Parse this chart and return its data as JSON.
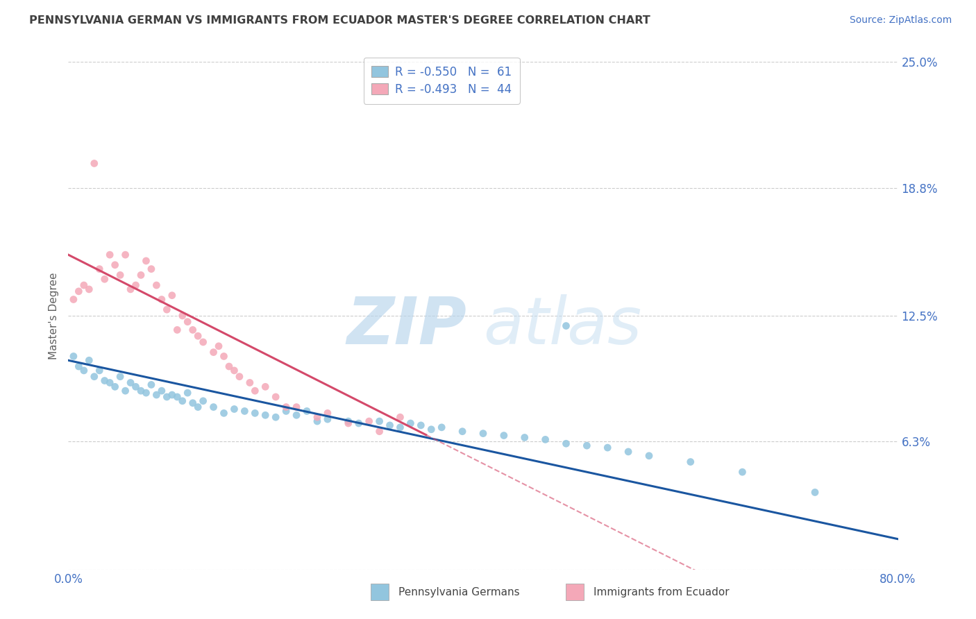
{
  "title": "PENNSYLVANIA GERMAN VS IMMIGRANTS FROM ECUADOR MASTER'S DEGREE CORRELATION CHART",
  "source_text": "Source: ZipAtlas.com",
  "ylabel": "Master's Degree",
  "xmin": 0.0,
  "xmax": 0.8,
  "ymin": 0.0,
  "ymax": 0.25,
  "ytick_vals": [
    0.0,
    0.063,
    0.125,
    0.188,
    0.25
  ],
  "ytick_labels": [
    "",
    "6.3%",
    "12.5%",
    "18.8%",
    "25.0%"
  ],
  "xtick_vals": [
    0.0,
    0.8
  ],
  "xtick_labels": [
    "0.0%",
    "80.0%"
  ],
  "r_blue": -0.55,
  "n_blue": 61,
  "r_pink": -0.493,
  "n_pink": 44,
  "blue_color": "#92c5de",
  "pink_color": "#f4a8b8",
  "blue_line_color": "#1a56a0",
  "pink_line_color": "#d4496a",
  "blue_scatter": [
    [
      0.005,
      0.105
    ],
    [
      0.01,
      0.1
    ],
    [
      0.015,
      0.098
    ],
    [
      0.02,
      0.103
    ],
    [
      0.025,
      0.095
    ],
    [
      0.03,
      0.098
    ],
    [
      0.035,
      0.093
    ],
    [
      0.04,
      0.092
    ],
    [
      0.045,
      0.09
    ],
    [
      0.05,
      0.095
    ],
    [
      0.055,
      0.088
    ],
    [
      0.06,
      0.092
    ],
    [
      0.065,
      0.09
    ],
    [
      0.07,
      0.088
    ],
    [
      0.075,
      0.087
    ],
    [
      0.08,
      0.091
    ],
    [
      0.085,
      0.086
    ],
    [
      0.09,
      0.088
    ],
    [
      0.095,
      0.085
    ],
    [
      0.1,
      0.086
    ],
    [
      0.105,
      0.085
    ],
    [
      0.11,
      0.083
    ],
    [
      0.115,
      0.087
    ],
    [
      0.12,
      0.082
    ],
    [
      0.125,
      0.08
    ],
    [
      0.13,
      0.083
    ],
    [
      0.14,
      0.08
    ],
    [
      0.15,
      0.077
    ],
    [
      0.16,
      0.079
    ],
    [
      0.17,
      0.078
    ],
    [
      0.18,
      0.077
    ],
    [
      0.19,
      0.076
    ],
    [
      0.2,
      0.075
    ],
    [
      0.21,
      0.078
    ],
    [
      0.22,
      0.076
    ],
    [
      0.23,
      0.078
    ],
    [
      0.24,
      0.073
    ],
    [
      0.25,
      0.074
    ],
    [
      0.27,
      0.073
    ],
    [
      0.28,
      0.072
    ],
    [
      0.3,
      0.073
    ],
    [
      0.31,
      0.071
    ],
    [
      0.32,
      0.07
    ],
    [
      0.33,
      0.072
    ],
    [
      0.34,
      0.071
    ],
    [
      0.35,
      0.069
    ],
    [
      0.36,
      0.07
    ],
    [
      0.38,
      0.068
    ],
    [
      0.4,
      0.067
    ],
    [
      0.42,
      0.066
    ],
    [
      0.44,
      0.065
    ],
    [
      0.46,
      0.064
    ],
    [
      0.48,
      0.062
    ],
    [
      0.5,
      0.061
    ],
    [
      0.52,
      0.06
    ],
    [
      0.54,
      0.058
    ],
    [
      0.56,
      0.056
    ],
    [
      0.6,
      0.053
    ],
    [
      0.65,
      0.048
    ],
    [
      0.72,
      0.038
    ],
    [
      0.48,
      0.12
    ]
  ],
  "pink_scatter": [
    [
      0.005,
      0.133
    ],
    [
      0.01,
      0.137
    ],
    [
      0.015,
      0.14
    ],
    [
      0.02,
      0.138
    ],
    [
      0.025,
      0.2
    ],
    [
      0.03,
      0.148
    ],
    [
      0.035,
      0.143
    ],
    [
      0.04,
      0.155
    ],
    [
      0.045,
      0.15
    ],
    [
      0.05,
      0.145
    ],
    [
      0.055,
      0.155
    ],
    [
      0.06,
      0.138
    ],
    [
      0.065,
      0.14
    ],
    [
      0.07,
      0.145
    ],
    [
      0.075,
      0.152
    ],
    [
      0.08,
      0.148
    ],
    [
      0.085,
      0.14
    ],
    [
      0.09,
      0.133
    ],
    [
      0.095,
      0.128
    ],
    [
      0.1,
      0.135
    ],
    [
      0.105,
      0.118
    ],
    [
      0.11,
      0.125
    ],
    [
      0.115,
      0.122
    ],
    [
      0.12,
      0.118
    ],
    [
      0.125,
      0.115
    ],
    [
      0.13,
      0.112
    ],
    [
      0.14,
      0.107
    ],
    [
      0.145,
      0.11
    ],
    [
      0.15,
      0.105
    ],
    [
      0.155,
      0.1
    ],
    [
      0.16,
      0.098
    ],
    [
      0.165,
      0.095
    ],
    [
      0.175,
      0.092
    ],
    [
      0.18,
      0.088
    ],
    [
      0.19,
      0.09
    ],
    [
      0.2,
      0.085
    ],
    [
      0.21,
      0.08
    ],
    [
      0.22,
      0.08
    ],
    [
      0.24,
      0.075
    ],
    [
      0.25,
      0.077
    ],
    [
      0.27,
      0.072
    ],
    [
      0.29,
      0.073
    ],
    [
      0.3,
      0.068
    ],
    [
      0.32,
      0.075
    ]
  ],
  "watermark_zip": "ZIP",
  "watermark_atlas": "atlas",
  "legend_label_blue": "Pennsylvania Germans",
  "legend_label_pink": "Immigrants from Ecuador",
  "background_color": "#ffffff",
  "grid_color": "#cccccc",
  "tick_color": "#4472c4",
  "title_color": "#404040",
  "ylabel_color": "#606060"
}
